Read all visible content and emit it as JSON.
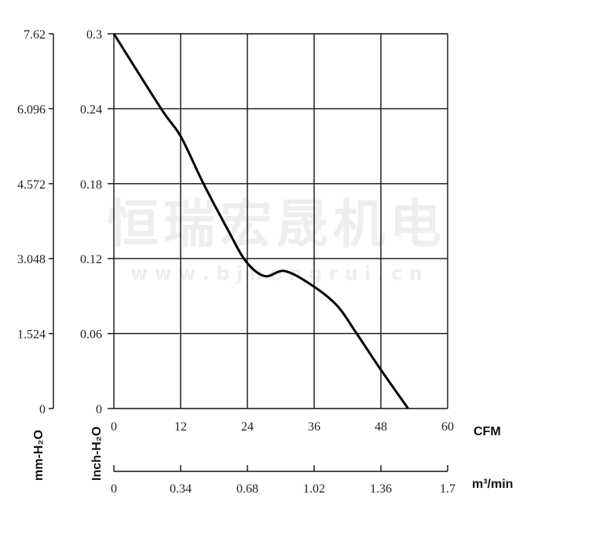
{
  "chart_data": {
    "type": "line",
    "title": "",
    "xlabel": "CFM",
    "xlabel_secondary": "m³/min",
    "ylabel": "Inch-H₂O",
    "ylabel_secondary": "mm-H₂O",
    "xlim": [
      0,
      60
    ],
    "ylim": [
      0,
      0.3
    ],
    "x_ticks": [
      "0",
      "12",
      "24",
      "36",
      "48",
      "60"
    ],
    "x_ticks_secondary": [
      "0",
      "0.34",
      "0.68",
      "1.02",
      "1.36",
      "1.7"
    ],
    "y_ticks": [
      "0",
      "0.06",
      "0.12",
      "0.18",
      "0.24",
      "0.3"
    ],
    "y_ticks_secondary": [
      "0",
      "1.524",
      "3.048",
      "4.572",
      "6.096",
      "7.62"
    ],
    "grid": true,
    "line_color": "#000000",
    "series": [
      {
        "x": [
          0,
          8.5,
          12,
          16,
          20.5,
          23.7,
          27.1,
          30.8,
          36,
          40.2,
          43.5,
          48,
          52.9
        ],
        "y": [
          0.3,
          0.24,
          0.218,
          0.181,
          0.143,
          0.118,
          0.106,
          0.11,
          0.0975,
          0.082,
          0.061,
          0.031,
          0
        ]
      }
    ]
  },
  "watermark": {
    "name": "恒瑞宏晟机电",
    "url": "w w w . b j h e n g r u i . c n"
  }
}
